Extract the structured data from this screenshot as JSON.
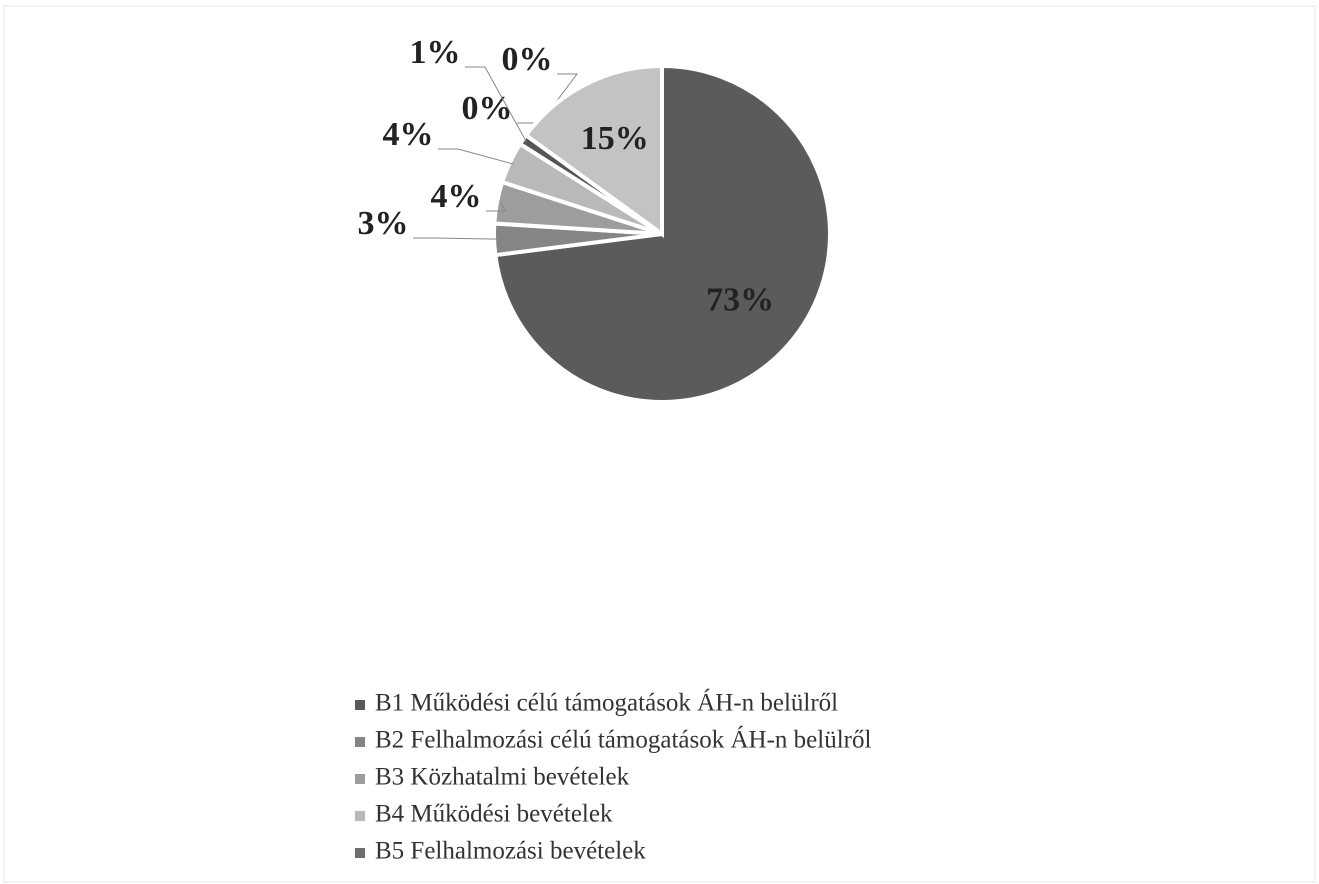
{
  "chart_data": {
    "type": "pie",
    "categories": [
      "B1 Működési célú támogatások ÁH-n belülről",
      "B2 Felhalmozási célú támogatások ÁH-n belülről",
      "B3 Közhatalmi bevételek",
      "B4 Működési bevételek",
      "B5 Felhalmozási bevételek",
      null,
      null,
      null
    ],
    "values": [
      73,
      3,
      4,
      4,
      0,
      1,
      0,
      15
    ],
    "value_labels": [
      "73%",
      "3%",
      "4%",
      "4%",
      "0%",
      "1%",
      "0%",
      "15%"
    ],
    "colors": [
      "#5b5b5b",
      "#858585",
      "#9d9d9d",
      "#b9b9b9",
      "#6f6f6f",
      "#555555",
      "#8a8a8a",
      "#c3c3c3"
    ],
    "legend": "bottom"
  }
}
